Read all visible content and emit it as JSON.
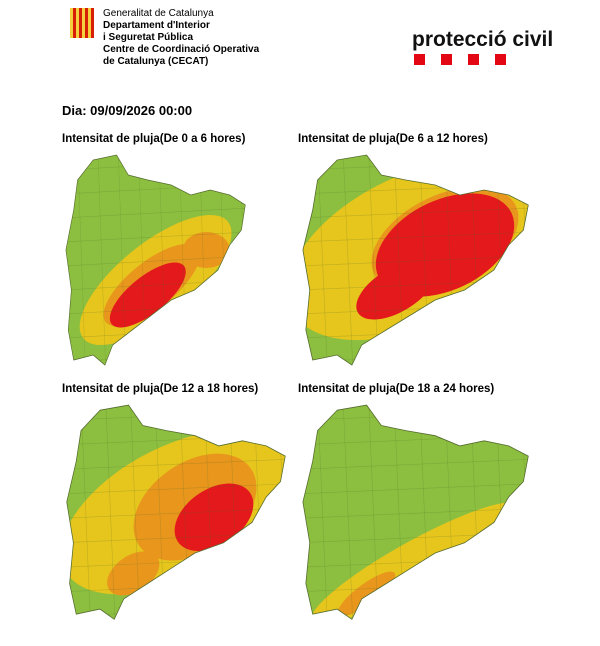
{
  "header": {
    "org_lines": [
      "Generalitat de Catalunya",
      "Departament d'Interior",
      "i Seguretat Pública",
      "Centre de Coordinació Operativa",
      "de Catalunya (CECAT)"
    ],
    "brand": "protecció civil"
  },
  "date": "Dia: 09/09/2026 00:00",
  "maps": [
    {
      "title": "Intensitat de pluja(De 0 a 6 hores)"
    },
    {
      "title": "Intensitat de pluja(De 6 a 12 hores)"
    },
    {
      "title": "Intensitat de pluja(De 12 a 18 hores)"
    },
    {
      "title": "Intensitat de pluja(De 18 a 24 hores)"
    }
  ]
}
